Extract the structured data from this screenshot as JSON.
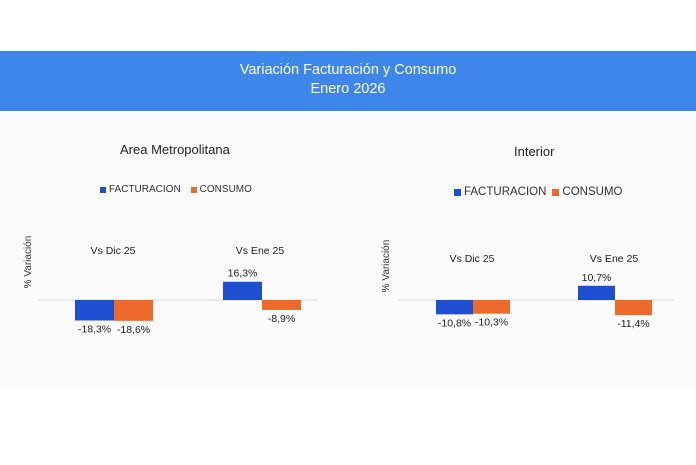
{
  "header": {
    "title": "Variación Facturación y Consumo",
    "subtitle": "Enero 2026"
  },
  "colors": {
    "banner": "#3f86ea",
    "facturacion": "#1f4fd1",
    "consumo": "#ee6a2a"
  },
  "chart_data": [
    {
      "type": "bar",
      "title": "Area Metropolitana",
      "ylabel": "% Variación",
      "categories": [
        "Vs Dic 25",
        "Vs Ene 25"
      ],
      "series": [
        {
          "name": "FACTURACION",
          "values": [
            -18.3,
            16.3
          ],
          "labels": [
            "-18,3%",
            "16,3%"
          ]
        },
        {
          "name": "CONSUMO",
          "values": [
            -18.6,
            -8.9
          ],
          "labels": [
            "-18,6%",
            "-8,9%"
          ]
        }
      ],
      "legend": "top"
    },
    {
      "type": "bar",
      "title": "Interior",
      "ylabel": "% Variación",
      "categories": [
        "Vs Dic 25",
        "Vs Ene 25"
      ],
      "series": [
        {
          "name": "FACTURACION",
          "values": [
            -10.8,
            10.7
          ],
          "labels": [
            "-10,8%",
            "10,7%"
          ]
        },
        {
          "name": "CONSUMO",
          "values": [
            -10.3,
            -11.4
          ],
          "labels": [
            "-10,3%",
            "-11,4%"
          ]
        }
      ],
      "legend": "top"
    }
  ]
}
